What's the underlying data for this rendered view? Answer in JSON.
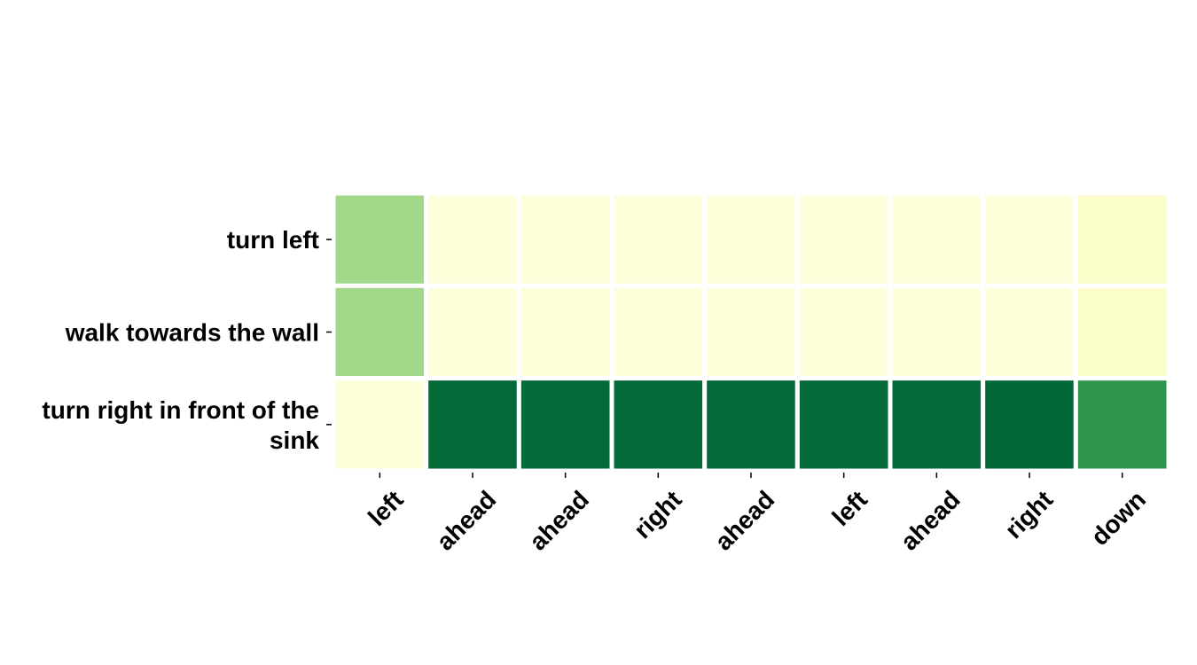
{
  "chart_data": {
    "type": "heatmap",
    "title": "",
    "xlabel": "",
    "ylabel": "",
    "rows": [
      {
        "label_lines": [
          "turn left"
        ]
      },
      {
        "label_lines": [
          "walk towards the wall"
        ]
      },
      {
        "label_lines": [
          "turn right in front of the",
          "sink"
        ]
      }
    ],
    "columns": [
      "left",
      "ahead",
      "ahead",
      "right",
      "ahead",
      "left",
      "ahead",
      "right",
      "down"
    ],
    "values": [
      [
        0.4,
        0.03,
        0.03,
        0.03,
        0.03,
        0.03,
        0.03,
        0.03,
        0.08
      ],
      [
        0.4,
        0.03,
        0.03,
        0.03,
        0.03,
        0.03,
        0.03,
        0.03,
        0.08
      ],
      [
        0.03,
        0.86,
        0.86,
        0.86,
        0.86,
        0.86,
        0.86,
        0.87,
        0.7
      ]
    ],
    "colormap": "YlGn",
    "colors": {
      "low": "#f7fcb9",
      "high": "#1a7a40"
    },
    "colorbar": false,
    "grid": false
  }
}
